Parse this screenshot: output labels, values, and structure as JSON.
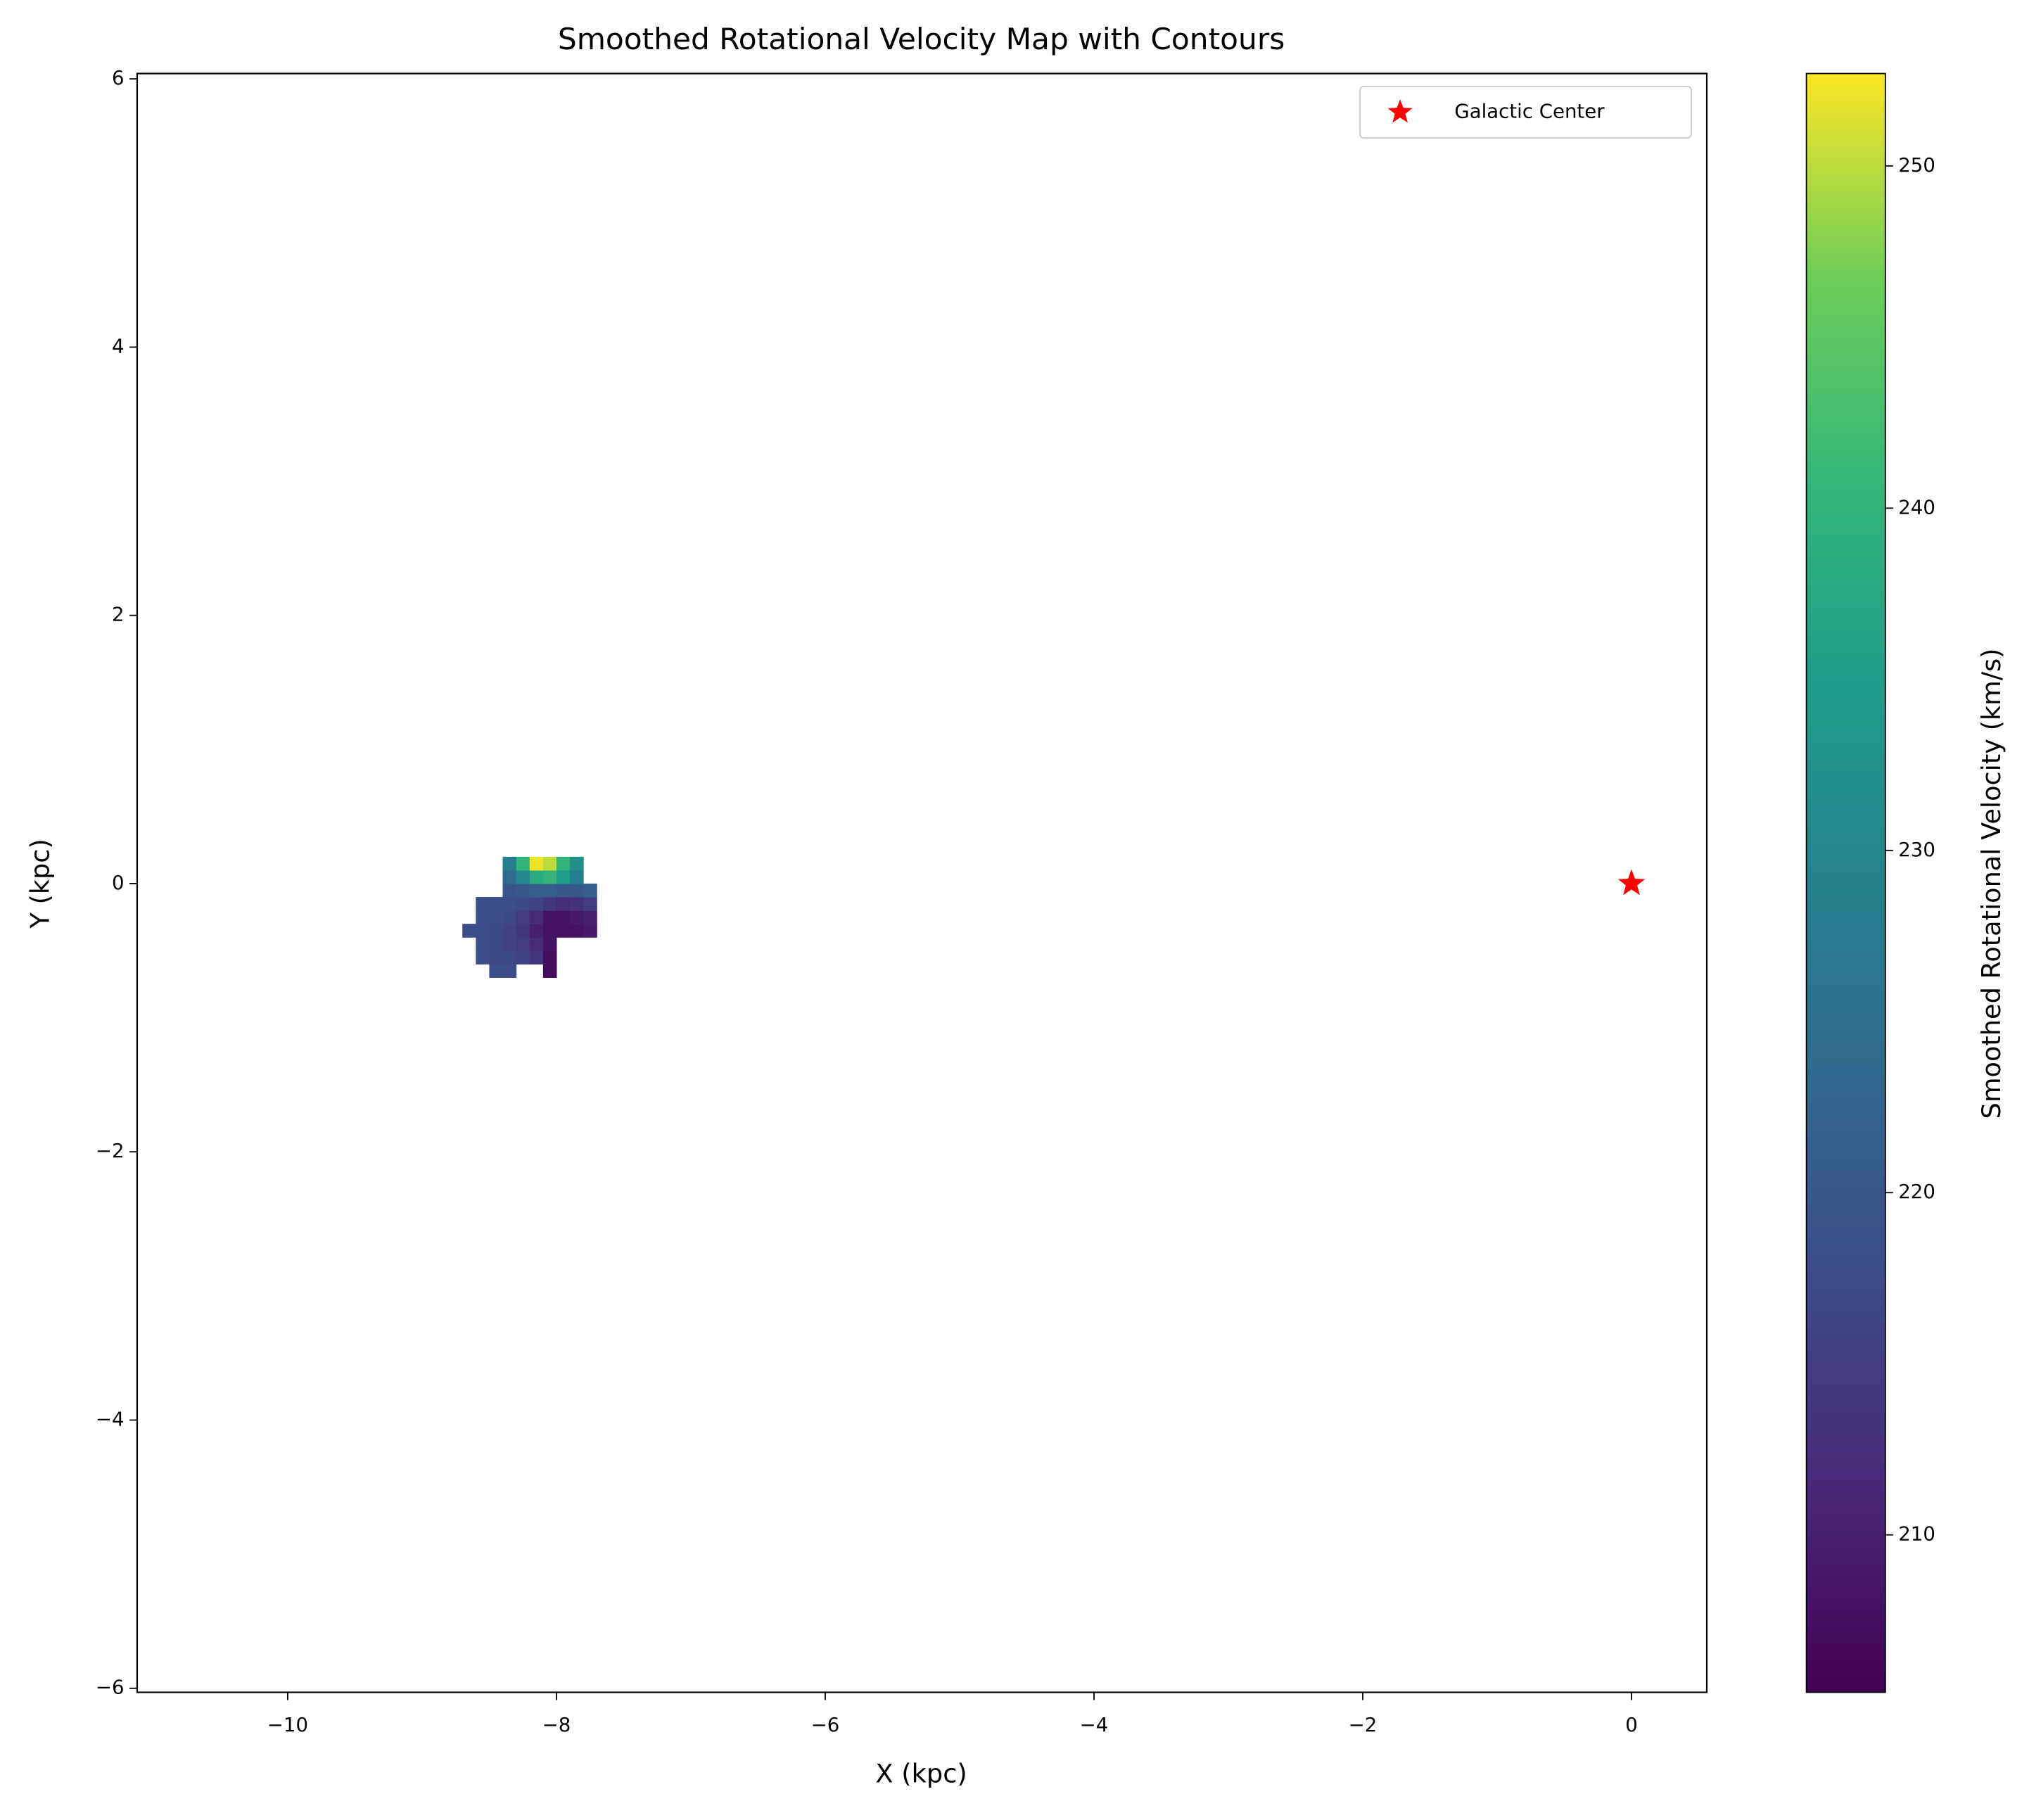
{
  "chart_data": {
    "type": "heatmap",
    "title": "Smoothed Rotational Velocity Map with Contours",
    "xlabel": "X (kpc)",
    "ylabel": "Y (kpc)",
    "xlim": [
      -11.12,
      0.56
    ],
    "ylim": [
      -6.03,
      6.04
    ],
    "xticks": [
      {
        "value": -10,
        "label": "−10"
      },
      {
        "value": -8,
        "label": "−8"
      },
      {
        "value": -6,
        "label": "−6"
      },
      {
        "value": -4,
        "label": "−4"
      },
      {
        "value": -2,
        "label": "−2"
      },
      0
    ],
    "yticks": [
      {
        "value": -6,
        "label": "−6"
      },
      {
        "value": -4,
        "label": "−4"
      },
      {
        "value": -2,
        "label": "−2"
      },
      0,
      2,
      4,
      6
    ],
    "x_edges": [
      -8.7,
      -8.6,
      -8.5,
      -8.4,
      -8.3,
      -8.2,
      -8.1,
      -8.0,
      -7.9,
      -7.8,
      -7.7
    ],
    "y_edges": [
      -0.7,
      -0.6,
      -0.5,
      -0.4,
      -0.3,
      -0.2,
      -0.1,
      0.0,
      0.1,
      0.2
    ],
    "z": [
      [
        null,
        null,
        218,
        218,
        null,
        null,
        207,
        null,
        null,
        null
      ],
      [
        null,
        218,
        217,
        217,
        216,
        214,
        207,
        null,
        null,
        null
      ],
      [
        null,
        218,
        217,
        216,
        215,
        212,
        208,
        null,
        null,
        null
      ],
      [
        218,
        218,
        217,
        216,
        214,
        210,
        208,
        208,
        208,
        209
      ],
      [
        null,
        218,
        218,
        217,
        215,
        212,
        208,
        208,
        209,
        210
      ],
      [
        null,
        218,
        218,
        218,
        217,
        216,
        214,
        212,
        213,
        215
      ],
      [
        null,
        null,
        null,
        219,
        220,
        221,
        221,
        220,
        220,
        221
      ],
      [
        null,
        null,
        null,
        224,
        230,
        238,
        240,
        235,
        228,
        null
      ],
      [
        null,
        null,
        null,
        228,
        240,
        252,
        250,
        240,
        232,
        null
      ]
    ],
    "colorbar": {
      "label": "Smoothed Rotational Velocity (km/s)",
      "lim": [
        205.4,
        252.7
      ],
      "ticks": [
        210,
        220,
        230,
        240,
        250
      ]
    },
    "series": [
      {
        "name": "Galactic Center",
        "color": "#ff0000",
        "type": "scatter",
        "x": [
          0
        ],
        "y": [
          0
        ]
      }
    ],
    "legend": "upper right"
  }
}
